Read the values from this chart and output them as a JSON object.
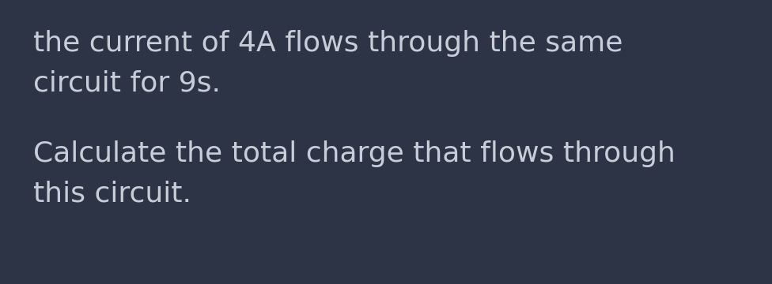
{
  "background_color": "#2d3446",
  "text_color": "#c8cdd8",
  "line1": "the current of 4A flows through the same",
  "line2": "circuit for 9s.",
  "line3": "Calculate the total charge that flows through",
  "line4": "this circuit.",
  "font_size": 26,
  "font_family": "DejaVu Sans",
  "fig_width": 9.76,
  "fig_height": 3.6,
  "dpi": 100
}
